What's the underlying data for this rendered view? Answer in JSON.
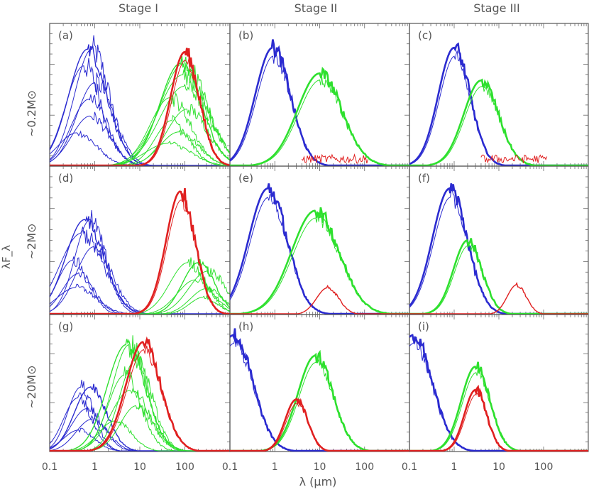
{
  "chart_data": {
    "type": "line",
    "title": "",
    "xlabel": "λ (μm)",
    "ylabel": "λF_λ",
    "xscale": "log",
    "xlim": [
      0.1,
      1000
    ],
    "x_ticks": [
      "0.1",
      "1",
      "10",
      "100"
    ],
    "y_ticks_labeled": false,
    "columns": [
      "Stage I",
      "Stage II",
      "Stage III"
    ],
    "rows": [
      "~0.2M⊙",
      "~2M⊙",
      "~20M⊙"
    ],
    "colors": {
      "blue": "#2b2bd0",
      "green": "#2ee02e",
      "red": "#e02020"
    },
    "panels": [
      {
        "label": "(a)",
        "stage": "Stage I",
        "mass": "~0.2M⊙",
        "series": [
          {
            "color": "blue",
            "peak_lambda_um": 0.7,
            "peak": 0.82,
            "width": 0.6,
            "thin_count": 6
          },
          {
            "color": "green",
            "peak_lambda_um": 80,
            "peak": 0.72,
            "width": 0.65,
            "thin_count": 8
          },
          {
            "color": "red",
            "peak_lambda_um": 100,
            "peak": 0.8,
            "width": 0.45,
            "thick": true
          }
        ]
      },
      {
        "label": "(b)",
        "stage": "Stage II",
        "mass": "~0.2M⊙",
        "series": [
          {
            "color": "blue",
            "peak_lambda_um": 0.9,
            "peak": 0.83,
            "width": 0.55,
            "thick": true
          },
          {
            "color": "green",
            "peak_lambda_um": 10,
            "peak": 0.65,
            "width": 0.7,
            "thick": true
          },
          {
            "color": "red",
            "noise_floor": true
          }
        ]
      },
      {
        "label": "(c)",
        "stage": "Stage III",
        "mass": "~0.2M⊙",
        "series": [
          {
            "color": "blue",
            "peak_lambda_um": 1.0,
            "peak": 0.83,
            "width": 0.5,
            "thick": true
          },
          {
            "color": "green",
            "peak_lambda_um": 4,
            "peak": 0.6,
            "width": 0.55,
            "thick": true
          },
          {
            "color": "red",
            "noise_floor": true
          }
        ]
      },
      {
        "label": "(d)",
        "stage": "Stage I",
        "mass": "~2M⊙",
        "series": [
          {
            "color": "blue",
            "peak_lambda_um": 0.6,
            "peak": 0.64,
            "width": 0.6,
            "thin_count": 6
          },
          {
            "color": "green",
            "peak_lambda_um": 200,
            "peak": 0.35,
            "width": 0.5,
            "thin_count": 5
          },
          {
            "color": "red",
            "peak_lambda_um": 80,
            "peak": 0.83,
            "width": 0.45,
            "thick": true
          }
        ]
      },
      {
        "label": "(e)",
        "stage": "Stage II",
        "mass": "~2M⊙",
        "series": [
          {
            "color": "blue",
            "peak_lambda_um": 0.7,
            "peak": 0.85,
            "width": 0.6,
            "thick": true
          },
          {
            "color": "green",
            "peak_lambda_um": 8,
            "peak": 0.7,
            "width": 0.75,
            "thick": true
          },
          {
            "color": "red",
            "peak_lambda_um": 15,
            "peak": 0.18,
            "width": 0.35,
            "thick": false
          }
        ]
      },
      {
        "label": "(f)",
        "stage": "Stage III",
        "mass": "~2M⊙",
        "series": [
          {
            "color": "blue",
            "peak_lambda_um": 0.8,
            "peak": 0.85,
            "width": 0.55,
            "thick": true
          },
          {
            "color": "green",
            "peak_lambda_um": 2,
            "peak": 0.5,
            "width": 0.45,
            "thick": true
          },
          {
            "color": "red",
            "peak_lambda_um": 25,
            "peak": 0.2,
            "width": 0.3,
            "thick": false
          }
        ]
      },
      {
        "label": "(g)",
        "stage": "Stage I",
        "mass": "~20M⊙",
        "series": [
          {
            "color": "blue",
            "peak_lambda_um": 0.8,
            "peak": 0.47,
            "width": 0.5,
            "thin_count": 5
          },
          {
            "color": "green",
            "peak_lambda_um": 5,
            "peak": 0.78,
            "width": 0.6,
            "thin_count": 6
          },
          {
            "color": "red",
            "peak_lambda_um": 12,
            "peak": 0.8,
            "width": 0.55,
            "thick": true
          }
        ]
      },
      {
        "label": "(h)",
        "stage": "Stage II",
        "mass": "~20M⊙",
        "series": [
          {
            "color": "blue",
            "peak_lambda_um": 0.12,
            "peak": 0.85,
            "width": 0.6,
            "thick": true
          },
          {
            "color": "green",
            "peak_lambda_um": 8,
            "peak": 0.7,
            "width": 0.55,
            "thick": true
          },
          {
            "color": "red",
            "peak_lambda_um": 3,
            "peak": 0.38,
            "width": 0.35,
            "thick": true
          }
        ]
      },
      {
        "label": "(i)",
        "stage": "Stage III",
        "mass": "~20M⊙",
        "series": [
          {
            "color": "blue",
            "peak_lambda_um": 0.12,
            "peak": 0.85,
            "width": 0.6,
            "thick": true
          },
          {
            "color": "green",
            "peak_lambda_um": 3,
            "peak": 0.62,
            "width": 0.45,
            "thick": true
          },
          {
            "color": "red",
            "peak_lambda_um": 3,
            "peak": 0.45,
            "width": 0.35,
            "thick": true
          }
        ]
      }
    ]
  }
}
